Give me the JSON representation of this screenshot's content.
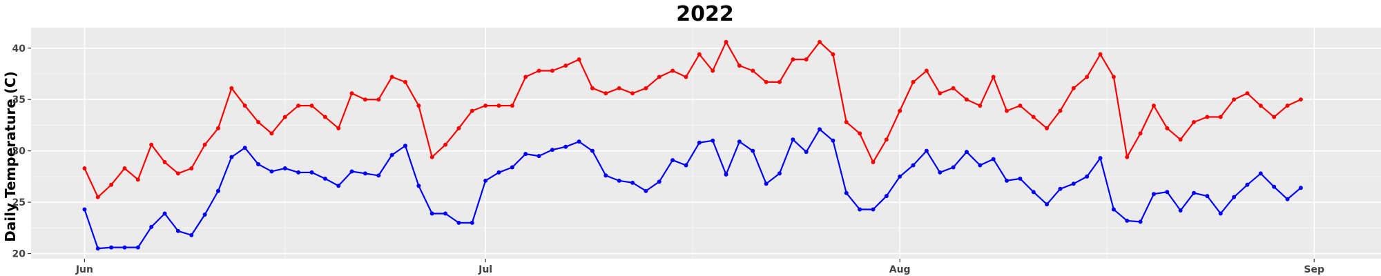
{
  "chart_data": {
    "type": "line",
    "title": "2022",
    "xlabel": "",
    "ylabel": "Daily Temperature (C)",
    "x_start": "2022-06-01",
    "x_end": "2022-08-31",
    "xlim": [
      "2022-05-28",
      "2022-09-06"
    ],
    "ylim": [
      19.5,
      42
    ],
    "x_ticks": [
      {
        "label": "Jun",
        "date": "2022-06-01"
      },
      {
        "label": "Jul",
        "date": "2022-07-01"
      },
      {
        "label": "Aug",
        "date": "2022-08-01"
      },
      {
        "label": "Sep",
        "date": "2022-09-01"
      }
    ],
    "y_ticks": [
      20,
      25,
      30,
      35,
      40
    ],
    "grid": true,
    "background": "#ebebeb",
    "series": [
      {
        "color": "#ff0000",
        "values": [
          28.3,
          25.5,
          26.7,
          28.3,
          27.2,
          30.6,
          28.9,
          27.8,
          28.3,
          30.6,
          32.2,
          36.1,
          34.4,
          32.8,
          31.7,
          33.3,
          34.4,
          34.4,
          33.3,
          32.2,
          35.6,
          35.0,
          35.0,
          37.2,
          36.7,
          34.4,
          29.4,
          30.6,
          32.2,
          33.9,
          34.4,
          34.4,
          34.4,
          37.2,
          37.8,
          37.8,
          38.3,
          38.9,
          36.1,
          35.6,
          36.1,
          35.6,
          36.1,
          37.2,
          37.8,
          37.2,
          39.4,
          37.8,
          40.6,
          38.3,
          37.8,
          36.7,
          36.7,
          38.9,
          38.9,
          40.6,
          39.4,
          32.8,
          31.7,
          28.9,
          31.1,
          33.9,
          36.7,
          37.8,
          35.6,
          36.1,
          35.0,
          34.4,
          37.2,
          33.9,
          34.4,
          33.3,
          32.2,
          33.9,
          36.1,
          37.2,
          39.4,
          37.2,
          29.4,
          31.7,
          34.4,
          32.2,
          31.1,
          32.8,
          33.3,
          33.3,
          35.0,
          35.6,
          34.4,
          33.3,
          34.4,
          35.0
        ]
      },
      {
        "color": "#0000ff",
        "values": [
          24.3,
          20.5,
          20.6,
          20.6,
          20.6,
          22.6,
          23.9,
          22.2,
          21.8,
          23.8,
          26.1,
          29.4,
          30.3,
          28.7,
          28.0,
          28.3,
          27.9,
          27.9,
          27.3,
          26.6,
          28.0,
          27.8,
          27.6,
          29.6,
          30.5,
          26.6,
          23.9,
          23.9,
          23.0,
          23.0,
          27.1,
          27.9,
          28.4,
          29.7,
          29.5,
          30.1,
          30.4,
          30.9,
          30.0,
          27.6,
          27.1,
          26.9,
          26.1,
          27.0,
          29.1,
          28.6,
          30.8,
          31.0,
          27.7,
          30.9,
          30.0,
          26.8,
          27.8,
          31.1,
          29.9,
          32.1,
          31.0,
          25.9,
          24.3,
          24.3,
          25.6,
          27.5,
          28.6,
          30.0,
          27.9,
          28.4,
          29.9,
          28.6,
          29.2,
          27.1,
          27.3,
          26.0,
          24.8,
          26.3,
          26.8,
          27.5,
          29.3,
          24.3,
          23.2,
          23.1,
          25.8,
          26.0,
          24.2,
          25.9,
          25.6,
          23.9,
          25.5,
          26.7,
          27.8,
          26.5,
          25.3,
          26.4
        ]
      }
    ]
  }
}
